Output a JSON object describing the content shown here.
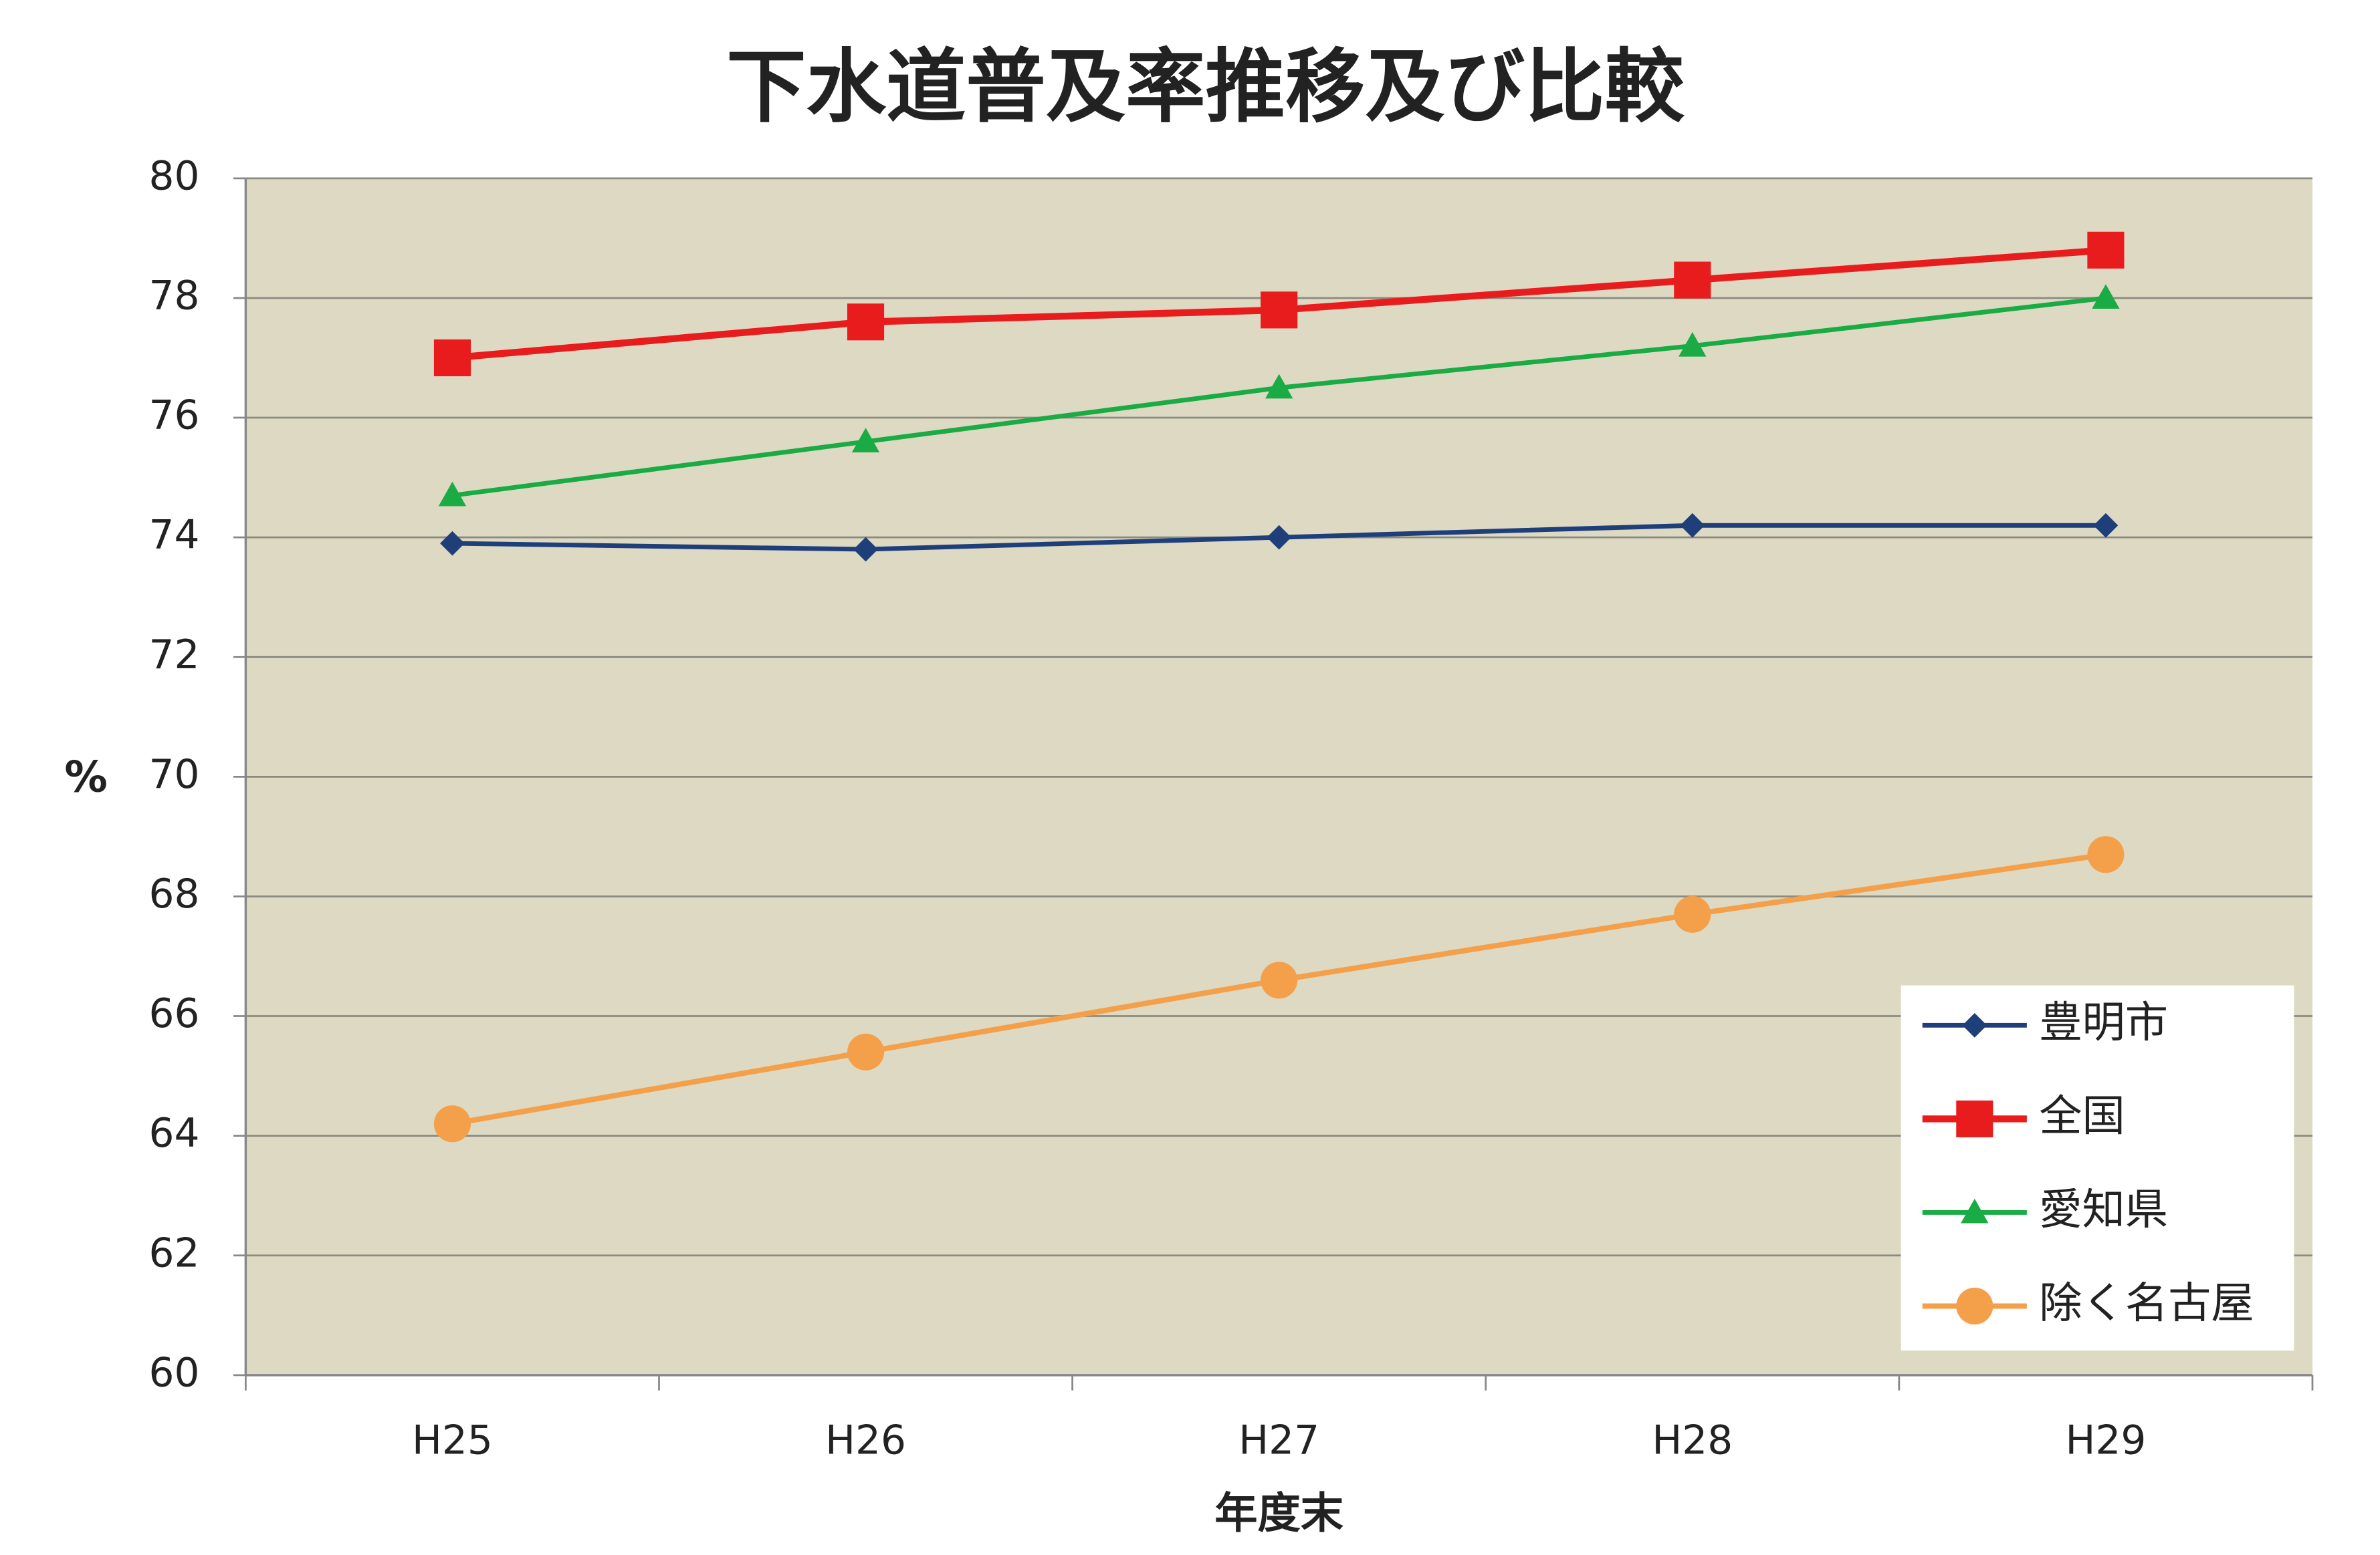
{
  "chart_data": {
    "type": "line",
    "title": "下水道普及率推移及び比較",
    "x_label": "年度末",
    "y_label": "%",
    "categories": [
      "H25",
      "H26",
      "H27",
      "H28",
      "H29"
    ],
    "series": [
      {
        "name": "豊明市",
        "color": "#1f3f7a",
        "marker": "diamond",
        "values": [
          73.9,
          73.8,
          74.0,
          74.2,
          74.2
        ]
      },
      {
        "name": "全国",
        "color": "#e81c1c",
        "marker": "square",
        "values": [
          77.0,
          77.6,
          77.8,
          78.3,
          78.8
        ]
      },
      {
        "name": "愛知県",
        "color": "#1aab45",
        "marker": "triangle",
        "values": [
          74.7,
          75.6,
          76.5,
          77.2,
          78.0
        ]
      },
      {
        "name": "除く名古屋",
        "color": "#f4a04a",
        "marker": "circle",
        "values": [
          64.2,
          65.4,
          66.6,
          67.7,
          68.7
        ]
      }
    ],
    "ylim": [
      60,
      80
    ],
    "yticks": [
      60,
      62,
      64,
      66,
      68,
      70,
      72,
      74,
      76,
      78,
      80
    ],
    "grid": true,
    "legend": "lower right",
    "plot_background": "#ddd9c3"
  }
}
